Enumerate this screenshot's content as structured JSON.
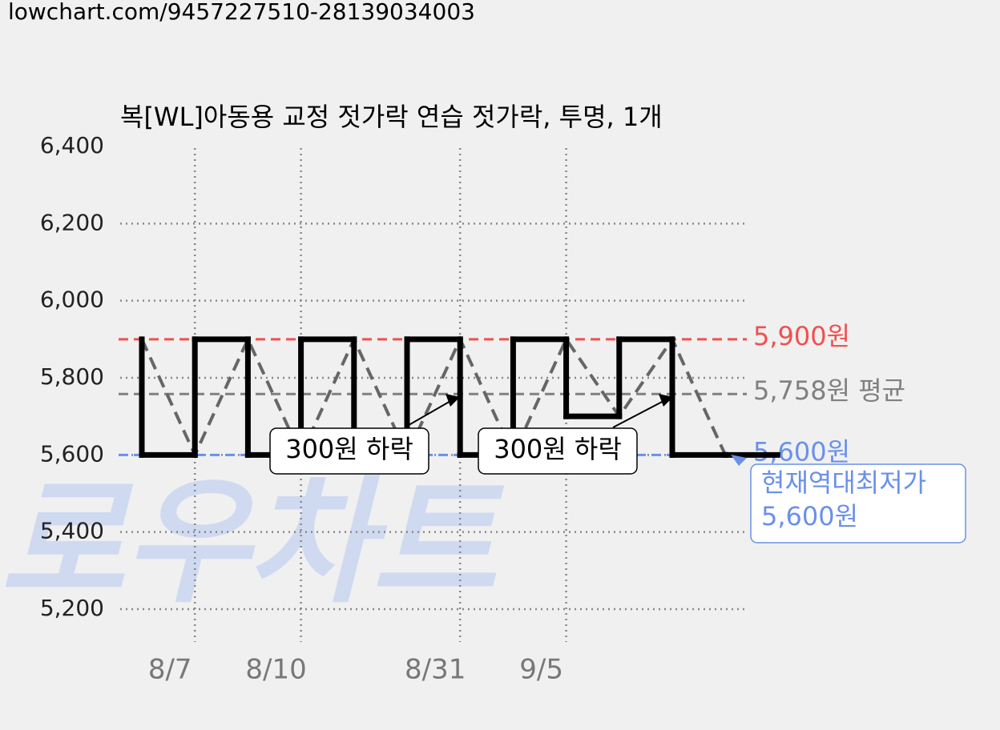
{
  "url": "lowchart.com/9457227510-28139034003",
  "chart_data": {
    "type": "line",
    "title": "복[WL]아동용 교정 젓가락 연습 젓가락, 투명, 1개",
    "watermark": "로우차트",
    "categories": [
      null,
      "8/7",
      null,
      "8/10",
      null,
      null,
      "8/31",
      null,
      "9/5",
      null,
      null,
      null
    ],
    "series": [
      {
        "color": "#000000",
        "values": [
          5900,
          5600,
          5900,
          5600,
          5900,
          5600,
          5900,
          5600,
          5900,
          5700,
          5900,
          5600
        ]
      }
    ],
    "ylim": [
      5200,
      6400
    ],
    "yticks": [
      {
        "value": 5200,
        "label": "5,200"
      },
      {
        "value": 5400,
        "label": "5,400"
      },
      {
        "value": 5600,
        "label": "5,600"
      },
      {
        "value": 5800,
        "label": "5,800"
      },
      {
        "value": 6000,
        "label": "6,000"
      },
      {
        "value": 6200,
        "label": "6,200"
      },
      {
        "value": 6400,
        "label": "6,400"
      }
    ],
    "grid": true,
    "ref_lines": [
      {
        "value": 5900,
        "label": "5,900원",
        "color": "#f05050"
      },
      {
        "value": 5758,
        "label": "5,758원 평균",
        "color": "#808080"
      },
      {
        "value": 5600,
        "label": "5,600원",
        "color": "#6a90ea"
      }
    ],
    "annotations": [
      "300원 하락",
      "300원 하락"
    ],
    "callout": [
      "현재역대최저가",
      "5,600원"
    ]
  }
}
